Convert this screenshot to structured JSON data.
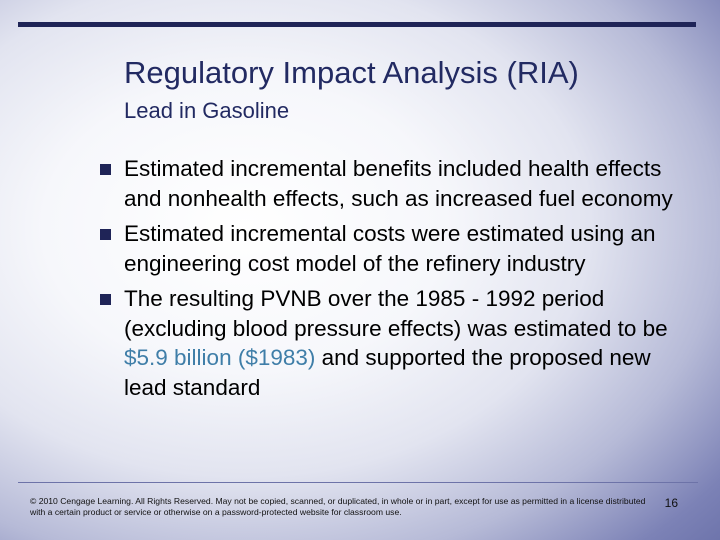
{
  "slide": {
    "title": "Regulatory Impact Analysis (RIA)",
    "subtitle": "Lead in Gasoline",
    "bullets": [
      {
        "text": "Estimated incremental benefits included health effects and nonhealth effects, such as increased fuel economy"
      },
      {
        "text": "Estimated incremental costs were estimated using an engineering cost model of the refinery industry"
      },
      {
        "pre": "The resulting PVNB over the 1985 - 1992 period (excluding blood pressure effects) was estimated to be ",
        "highlight": "$5.9 billion ($1983)",
        "post": " and supported the proposed new lead standard"
      }
    ],
    "footer": "© 2010 Cengage Learning. All Rights Reserved. May not be copied, scanned, or duplicated, in whole or in part, except for use as permitted in a license distributed with a certain product or service or otherwise on a password-protected website for classroom use.",
    "page_number": "16"
  },
  "colors": {
    "title": "#222a62",
    "rule": "#1f2457",
    "highlight": "#3f7ea8"
  }
}
